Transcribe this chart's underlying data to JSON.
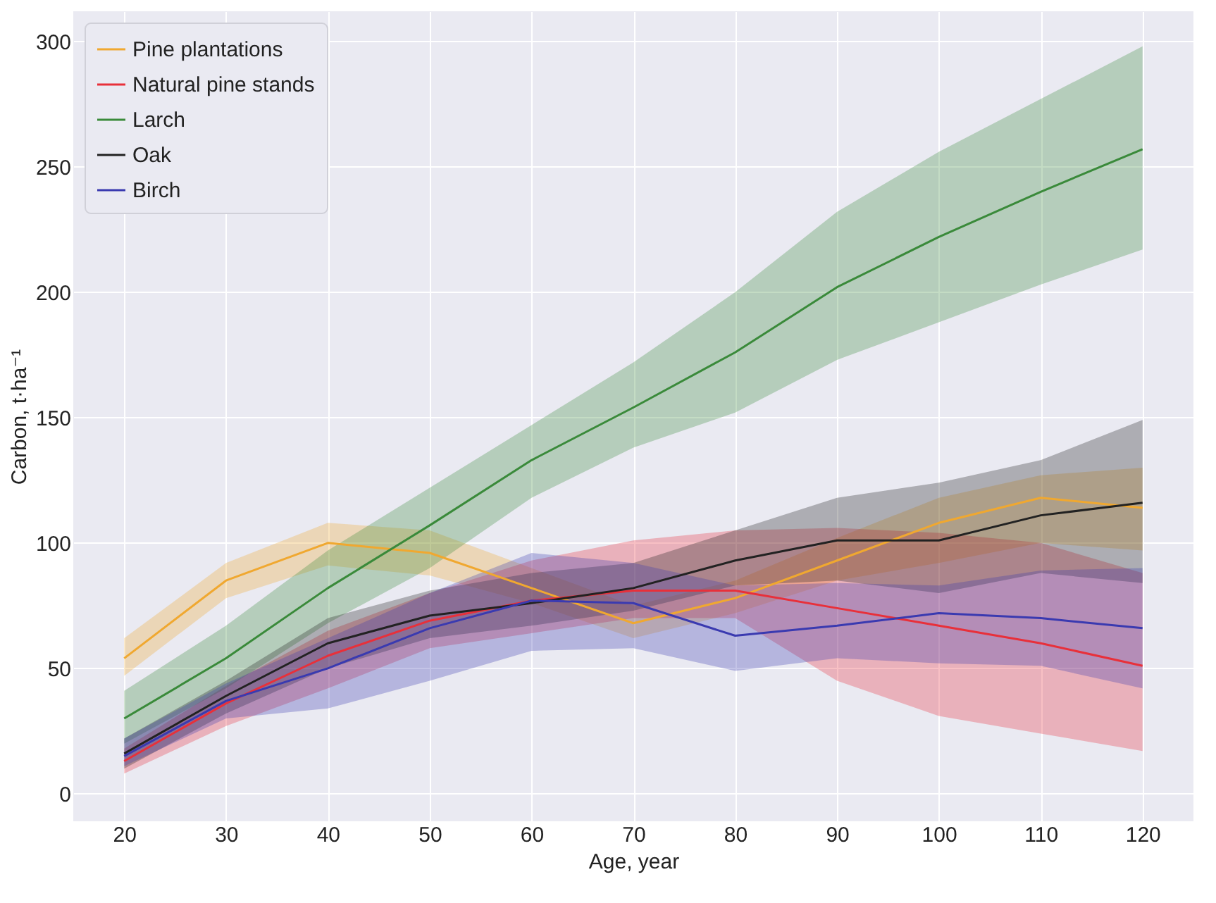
{
  "chart_data": {
    "type": "line",
    "xlabel": "Age, year",
    "ylabel": "Carbon, t·ha⁻¹",
    "x": [
      20,
      30,
      40,
      50,
      60,
      70,
      80,
      90,
      100,
      110,
      120
    ],
    "xlim": [
      15,
      125
    ],
    "xticks": [
      20,
      30,
      40,
      50,
      60,
      70,
      80,
      90,
      100,
      110,
      120
    ],
    "ylim": [
      -11,
      312
    ],
    "yticks": [
      0,
      50,
      100,
      150,
      200,
      250,
      300
    ],
    "grid": true,
    "legend": "top left",
    "line_style": "solid",
    "series": [
      {
        "name": "Pine plantations",
        "color": "#f0a830",
        "values": [
          54,
          85,
          100,
          96,
          82,
          68,
          78,
          93,
          108,
          118,
          114
        ],
        "lower": [
          47,
          78,
          91,
          87,
          76,
          62,
          72,
          85,
          92,
          100,
          97
        ],
        "upper": [
          62,
          92,
          108,
          105,
          90,
          75,
          85,
          102,
          118,
          127,
          130
        ]
      },
      {
        "name": "Natural pine stands",
        "color": "#e8303a",
        "values": [
          13,
          36,
          55,
          69,
          77,
          81,
          81,
          74,
          67,
          60,
          51
        ],
        "lower": [
          8,
          27,
          42,
          58,
          64,
          70,
          70,
          45,
          31,
          24,
          17
        ],
        "upper": [
          18,
          43,
          65,
          80,
          93,
          101,
          105,
          106,
          104,
          100,
          88
        ]
      },
      {
        "name": "Larch",
        "color": "#3a8a3a",
        "values": [
          30,
          54,
          82,
          107,
          133,
          154,
          176,
          202,
          222,
          240,
          257
        ],
        "lower": [
          20,
          42,
          68,
          90,
          118,
          138,
          152,
          173,
          188,
          203,
          217
        ],
        "upper": [
          41,
          67,
          97,
          122,
          147,
          172,
          200,
          232,
          256,
          277,
          298
        ]
      },
      {
        "name": "Oak",
        "color": "#222222",
        "values": [
          16,
          39,
          60,
          71,
          76,
          82,
          93,
          101,
          101,
          111,
          116
        ],
        "lower": [
          10,
          32,
          50,
          62,
          67,
          73,
          83,
          85,
          80,
          88,
          84
        ],
        "upper": [
          22,
          45,
          70,
          81,
          88,
          92,
          105,
          118,
          124,
          133,
          149
        ]
      },
      {
        "name": "Birch",
        "color": "#3a3ab0",
        "values": [
          15,
          37,
          50,
          66,
          77,
          76,
          63,
          67,
          72,
          70,
          66
        ],
        "lower": [
          11,
          30,
          34,
          45,
          57,
          58,
          49,
          54,
          52,
          51,
          42
        ],
        "upper": [
          22,
          44,
          62,
          80,
          96,
          92,
          83,
          84,
          83,
          89,
          90
        ]
      }
    ]
  }
}
